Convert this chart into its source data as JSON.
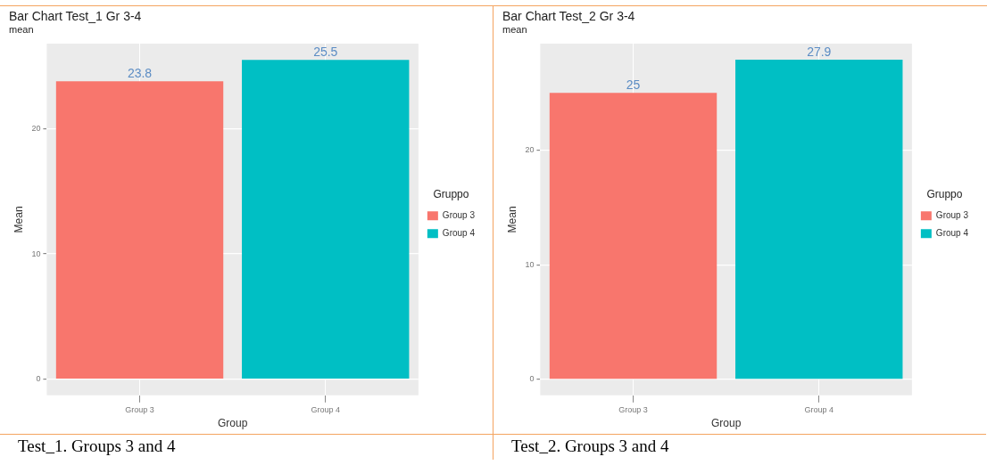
{
  "chart_data": [
    {
      "type": "bar",
      "title": "Bar Chart Test_1 Gr 3-4",
      "subtitle": "mean",
      "xlabel": "Group",
      "ylabel": "Mean",
      "legend_title": "Gruppo",
      "categories": [
        "Group 3",
        "Group 4"
      ],
      "series": [
        {
          "name": "Group 3",
          "color": "#f8766d",
          "values": [
            23.8,
            null
          ]
        },
        {
          "name": "Group 4",
          "color": "#00bfc4",
          "values": [
            null,
            25.5
          ]
        }
      ],
      "ylim": [
        -1.3,
        26.8
      ],
      "yticks": [
        0,
        10,
        20
      ],
      "grid": true,
      "legend": "right",
      "data_labels": true,
      "annotations": [
        "Test_1. Groups 3 and 4"
      ]
    },
    {
      "type": "bar",
      "title": "Bar Chart Test_2 Gr 3-4",
      "subtitle": "mean",
      "xlabel": "Group",
      "ylabel": "Mean",
      "legend_title": "Gruppo",
      "categories": [
        "Group 3",
        "Group 4"
      ],
      "series": [
        {
          "name": "Group 3",
          "color": "#f8766d",
          "values": [
            25,
            null
          ]
        },
        {
          "name": "Group 4",
          "color": "#00bfc4",
          "values": [
            null,
            27.9
          ]
        }
      ],
      "ylim": [
        -1.4,
        29.3
      ],
      "yticks": [
        0,
        10,
        20
      ],
      "grid": true,
      "legend": "right",
      "data_labels": true,
      "annotations": [
        "Test_2. Groups 3 and 4"
      ]
    }
  ]
}
